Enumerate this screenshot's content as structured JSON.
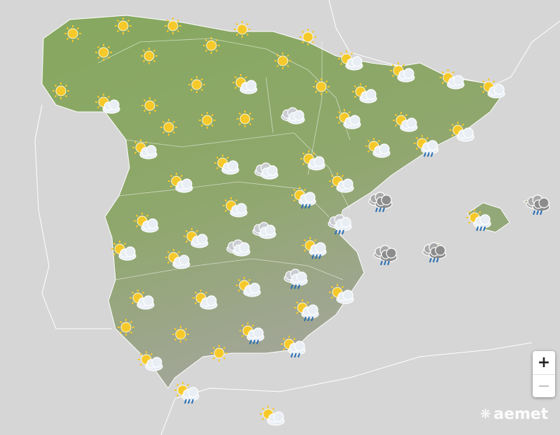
{
  "map": {
    "region": "Spain",
    "colors": {
      "sea": "#d6d6d6",
      "land": "#8da66a",
      "land_south": "#a3a89a",
      "borders": "#ffffff",
      "sun": "#f6c92a",
      "cloud": "#e8eef4",
      "dark_cloud": "#8c8c8c",
      "rain": "#2a6fb5"
    },
    "forecast_icons": [
      "sun",
      "sun",
      "sun",
      "sun",
      "sun",
      "sun",
      "sun",
      "sun",
      "sun",
      "sun",
      "sun",
      "sun",
      "sun",
      "sun",
      "sun",
      "sun",
      "sun-cloud",
      "sun-cloud",
      "sun-cloud",
      "sun-cloud",
      "sun-cloud",
      "sun-cloud",
      "sun-cloud",
      "sun-cloud",
      "sun-cloud",
      "sun-cloud",
      "sun-cloud",
      "sun-cloud",
      "sun-cloud",
      "sun-cloud",
      "sun-cloud",
      "sun-cloud",
      "sun-cloud",
      "sun-cloud",
      "sun-cloud",
      "sun-cloud",
      "sun-cloud",
      "sun-cloud",
      "sun-cloud",
      "sun-cloud",
      "sun-cloud",
      "sun-cloud",
      "sun-cloud",
      "cloud",
      "cloud",
      "cloud",
      "cloud",
      "sun-cloud-rain",
      "sun-cloud-rain",
      "sun-cloud-rain",
      "sun-cloud-rain",
      "sun-cloud-rain",
      "sun-cloud-rain",
      "sun-cloud-rain",
      "sun-cloud-rain",
      "cloud-rain",
      "cloud-rain",
      "storm-cloud-rain",
      "storm-cloud-rain",
      "storm-cloud-rain",
      "storm-cloud-rain",
      "sun",
      "sun",
      "sun"
    ]
  },
  "controls": {
    "zoom_in": "+",
    "zoom_out": "−"
  },
  "logo": {
    "text": "aemet"
  }
}
